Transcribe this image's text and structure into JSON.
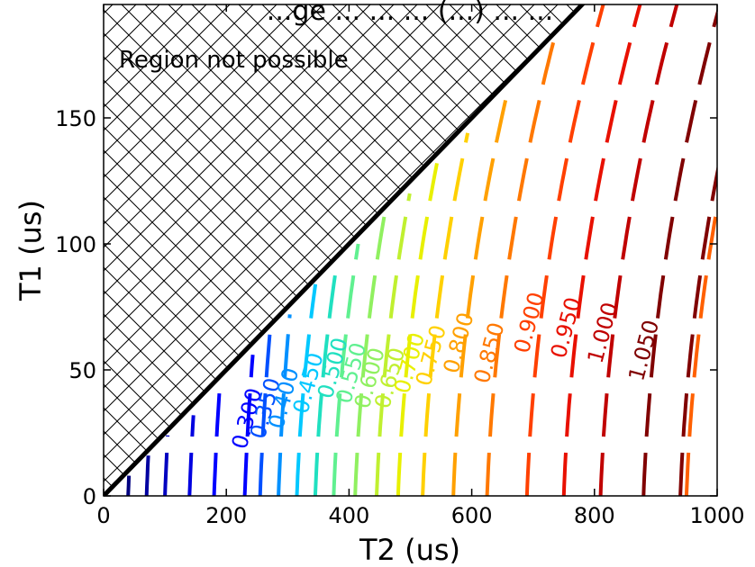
{
  "chart_data": {
    "type": "contour",
    "title": "...ge ... ... ... (...) ... ...",
    "xlabel": "T2 (us)",
    "ylabel": "T1 (us)",
    "xlim": [
      0,
      1000
    ],
    "ylim": [
      0,
      195
    ],
    "x_ticks": [
      0,
      200,
      400,
      600,
      800,
      1000
    ],
    "x_tick_labels": [
      "0",
      "200",
      "400",
      "600",
      "800",
      "1000"
    ],
    "y_ticks": [
      0,
      50,
      100,
      150
    ],
    "y_tick_labels": [
      "0",
      "50",
      "100",
      "150"
    ],
    "boundary": {
      "description_label": "Region not possible",
      "line": [
        [
          0,
          0
        ],
        [
          800,
          200
        ]
      ]
    },
    "region_label": "Region not possible",
    "contour_levels": [
      {
        "label": "0.300",
        "color": "#0000ff",
        "x0": 230,
        "label_x": 245,
        "label_y": 30
      },
      {
        "label": "0.350",
        "color": "#0050ff",
        "x0": 255,
        "label_x": 275,
        "label_y": 34
      },
      {
        "label": "0.400",
        "color": "#0090ff",
        "x0": 285,
        "label_x": 305,
        "label_y": 38
      },
      {
        "label": "0.450",
        "color": "#00c8ff",
        "x0": 315,
        "label_x": 345,
        "label_y": 44
      },
      {
        "label": "0.500",
        "color": "#20e0c0",
        "x0": 345,
        "label_x": 385,
        "label_y": 50
      },
      {
        "label": "0.550",
        "color": "#60f090",
        "x0": 375,
        "label_x": 415,
        "label_y": 48
      },
      {
        "label": "0.600",
        "color": "#90f060",
        "x0": 410,
        "label_x": 445,
        "label_y": 46
      },
      {
        "label": "0.650",
        "color": "#c0f030",
        "x0": 445,
        "label_x": 478,
        "label_y": 46
      },
      {
        "label": "0.700",
        "color": "#e8f000",
        "x0": 480,
        "label_x": 510,
        "label_y": 52
      },
      {
        "label": "0.750",
        "color": "#ffd000",
        "x0": 520,
        "label_x": 545,
        "label_y": 55
      },
      {
        "label": "0.800",
        "color": "#ffa000",
        "x0": 570,
        "label_x": 590,
        "label_y": 60
      },
      {
        "label": "0.850",
        "color": "#ff7800",
        "x0": 625,
        "label_x": 640,
        "label_y": 56
      },
      {
        "label": "0.900",
        "color": "#ff4000",
        "x0": 690,
        "label_x": 705,
        "label_y": 68
      },
      {
        "label": "0.950",
        "color": "#e81000",
        "x0": 750,
        "label_x": 765,
        "label_y": 66
      },
      {
        "label": "1.000",
        "color": "#c00000",
        "x0": 810,
        "label_x": 825,
        "label_y": 64
      },
      {
        "label": "1.050",
        "color": "#800000",
        "x0": 880,
        "label_x": 892,
        "label_y": 57
      }
    ],
    "extra_contour_segments": [
      {
        "color": "#000080",
        "x0": 40,
        "ymax": 10
      },
      {
        "color": "#0000a0",
        "x0": 70,
        "ymax": 20
      },
      {
        "color": "#0000c0",
        "x0": 100,
        "ymax": 26
      },
      {
        "color": "#0000e0",
        "x0": 140,
        "ymax": 36
      },
      {
        "color": "#0000ff",
        "x0": 180,
        "ymax": 46
      },
      {
        "color": "#ff6000",
        "x0": 950,
        "ymax": 200
      },
      {
        "color": "#800000",
        "x0": 940,
        "ymax": 200
      }
    ]
  }
}
